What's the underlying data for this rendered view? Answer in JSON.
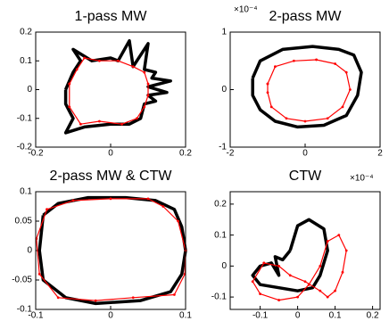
{
  "chart_data": [
    {
      "type": "line",
      "title": "1-pass MW",
      "xlim": [
        -0.2,
        0.2
      ],
      "xticks": [
        -0.2,
        0,
        0.2
      ],
      "ylim": [
        -0.2,
        0.2
      ],
      "yticks": [
        -0.2,
        -0.1,
        0,
        0.1,
        0.2
      ],
      "series": [
        {
          "color": "#000000",
          "marker": false,
          "x": [
            -0.12,
            -0.1,
            -0.08,
            -0.1,
            -0.05,
            0.0,
            0.02,
            0.05,
            0.06,
            0.1,
            0.09,
            0.12,
            0.11,
            0.16,
            0.1,
            0.15,
            0.1,
            0.12,
            0.09,
            0.08,
            0.05,
            0.0,
            -0.07,
            -0.12,
            -0.1,
            -0.12,
            -0.12
          ],
          "values": [
            0.0,
            0.06,
            0.1,
            0.14,
            0.1,
            0.11,
            0.1,
            0.17,
            0.08,
            0.16,
            0.07,
            0.06,
            0.04,
            0.03,
            0.01,
            -0.01,
            -0.02,
            -0.04,
            -0.05,
            -0.1,
            -0.12,
            -0.12,
            -0.13,
            -0.15,
            -0.1,
            -0.05,
            0.0
          ]
        },
        {
          "color": "#ff0000",
          "marker": true,
          "x": [
            -0.11,
            -0.09,
            -0.07,
            -0.03,
            0.02,
            0.06,
            0.09,
            0.1,
            0.1,
            0.09,
            0.07,
            0.03,
            -0.03,
            -0.08,
            -0.11,
            -0.11
          ],
          "values": [
            0.02,
            0.07,
            0.11,
            0.1,
            0.1,
            0.08,
            0.06,
            0.02,
            -0.02,
            -0.06,
            -0.1,
            -0.12,
            -0.11,
            -0.12,
            -0.06,
            0.02
          ]
        }
      ]
    },
    {
      "type": "line",
      "title": "2-pass MW",
      "annotation": "×10⁻⁴",
      "xlim": [
        -2,
        2
      ],
      "xticks": [
        -2,
        0,
        2
      ],
      "ylim": [
        -1,
        1
      ],
      "yticks": [
        -1,
        0,
        1
      ],
      "series": [
        {
          "color": "#000000",
          "marker": false,
          "x": [
            -1.4,
            -1.2,
            -0.6,
            0.2,
            0.9,
            1.3,
            1.5,
            1.4,
            1.1,
            0.5,
            -0.2,
            -0.8,
            -1.2,
            -1.4,
            -1.4
          ],
          "values": [
            0.2,
            0.5,
            0.7,
            0.75,
            0.7,
            0.6,
            0.3,
            -0.1,
            -0.45,
            -0.62,
            -0.65,
            -0.55,
            -0.35,
            -0.1,
            0.2
          ]
        },
        {
          "color": "#ff0000",
          "marker": true,
          "x": [
            -1.0,
            -0.8,
            -0.3,
            0.3,
            0.8,
            1.1,
            1.2,
            1.0,
            0.6,
            0,
            -0.5,
            -0.9,
            -1.0,
            -1.0
          ],
          "values": [
            0.1,
            0.4,
            0.5,
            0.52,
            0.45,
            0.3,
            0.0,
            -0.3,
            -0.5,
            -0.55,
            -0.5,
            -0.3,
            -0.05,
            0.1
          ]
        }
      ]
    },
    {
      "type": "line",
      "title": "2-pass MW & CTW",
      "xlim": [
        -0.1,
        0.1
      ],
      "xticks": [
        -0.1,
        0,
        0.1
      ],
      "ylim": [
        -0.1,
        0.1
      ],
      "yticks": [
        -0.1,
        -0.05,
        0,
        0.05,
        0.1
      ],
      "series": [
        {
          "color": "#000000",
          "marker": false,
          "x": [
            -0.09,
            -0.07,
            -0.03,
            0.02,
            0.06,
            0.085,
            0.095,
            0.1,
            0.095,
            0.08,
            0.04,
            -0.02,
            -0.06,
            -0.09,
            -0.095,
            -0.09
          ],
          "values": [
            0.06,
            0.08,
            0.09,
            0.09,
            0.085,
            0.07,
            0.04,
            0.0,
            -0.04,
            -0.07,
            -0.085,
            -0.09,
            -0.08,
            -0.05,
            0.0,
            0.06
          ]
        },
        {
          "color": "#ff0000",
          "marker": true,
          "x": [
            -0.085,
            -0.05,
            0.0,
            0.05,
            0.07,
            0.09,
            0.1,
            0.099,
            0.085,
            0.03,
            -0.02,
            -0.07,
            -0.095,
            -0.099,
            -0.085
          ],
          "values": [
            0.07,
            0.085,
            0.088,
            0.088,
            0.075,
            0.05,
            0.0,
            -0.04,
            -0.075,
            -0.08,
            -0.085,
            -0.08,
            -0.04,
            0.02,
            0.07
          ]
        }
      ]
    },
    {
      "type": "line",
      "title": "CTW",
      "annotation": "×10⁻⁴",
      "xlim": [
        -0.18,
        0.22
      ],
      "xticks": [
        -0.1,
        0,
        0.1,
        0.2
      ],
      "ylim": [
        -0.14,
        0.24
      ],
      "yticks": [
        -0.1,
        0,
        0.1,
        0.2
      ],
      "series": [
        {
          "color": "#000000",
          "marker": false,
          "x": [
            -0.02,
            0.0,
            0.03,
            0.07,
            0.08,
            0.06,
            0.04,
            0.0,
            -0.05,
            -0.1,
            -0.12,
            -0.1,
            -0.07,
            -0.05,
            -0.06,
            -0.04,
            -0.02
          ],
          "values": [
            0.05,
            0.13,
            0.15,
            0.12,
            0.05,
            -0.03,
            -0.07,
            -0.08,
            -0.07,
            -0.06,
            -0.03,
            0.0,
            0.01,
            -0.03,
            0.03,
            0.02,
            0.05
          ]
        },
        {
          "color": "#ff0000",
          "marker": true,
          "x": [
            -0.09,
            -0.05,
            -0.02,
            0.02,
            0.06,
            0.08,
            0.1,
            0.12,
            0.13,
            0.11,
            0.08,
            0.06,
            0.03,
            0.0,
            -0.05,
            -0.1,
            -0.12,
            -0.09
          ],
          "values": [
            0.01,
            0.0,
            -0.03,
            -0.05,
            -0.08,
            -0.1,
            -0.08,
            -0.02,
            0.05,
            0.1,
            0.08,
            0.0,
            -0.06,
            -0.1,
            -0.11,
            -0.09,
            -0.05,
            0.01
          ]
        }
      ]
    }
  ]
}
